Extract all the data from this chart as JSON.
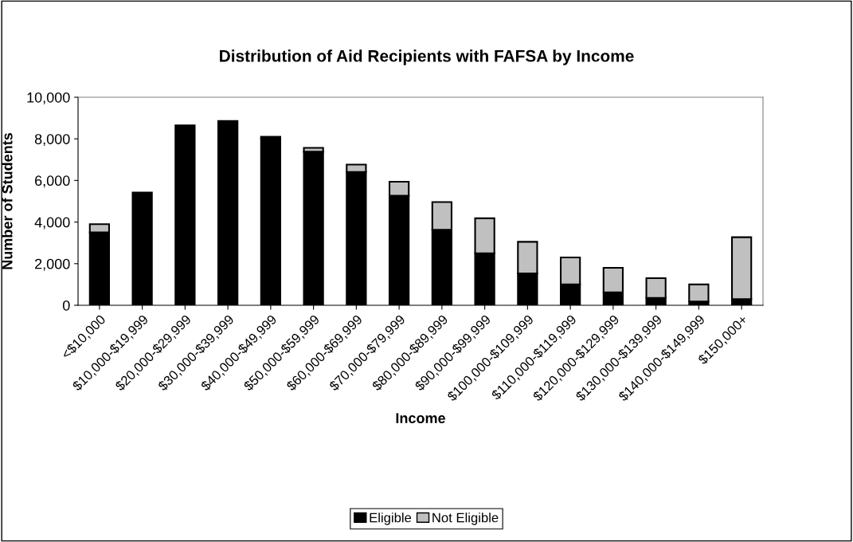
{
  "chart_data": {
    "type": "bar",
    "title": "Distribution of Aid Recipients with FAFSA by Income",
    "xlabel": "Income",
    "ylabel": "Number of Students",
    "categories": [
      "<$10,000",
      "$10,000-$19,999",
      "$20,000-$29,999",
      "$30,000-$39,999",
      "$40,000-$49,999",
      "$50,000-$59,999",
      "$60,000-$69,999",
      "$70,000-$79,999",
      "$80,000-$89,999",
      "$90,000-$99,999",
      "$100,000-$109,999",
      "$110,000-$119,999",
      "$120,000-$129,999",
      "$130,000-$139,999",
      "$140,000-$149,999",
      "$150,000+"
    ],
    "stacked": true,
    "series": [
      {
        "name": "Eligible",
        "color": "#000000",
        "values": [
          3500,
          5420,
          8650,
          8860,
          8030,
          7380,
          6410,
          5270,
          3630,
          2500,
          1530,
          1000,
          620,
          350,
          180,
          300
        ]
      },
      {
        "name": "Not Eligible",
        "color": "#c0c0c0",
        "values": [
          400,
          null,
          null,
          null,
          70,
          190,
          350,
          670,
          1330,
          1680,
          1520,
          1300,
          1180,
          950,
          820,
          2970
        ]
      }
    ],
    "ylim": [
      0,
      10000
    ],
    "yticks": [
      {
        "value": 0,
        "label": "0"
      },
      {
        "value": 2000,
        "label": "2,000"
      },
      {
        "value": 4000,
        "label": "4,000"
      },
      {
        "value": 6000,
        "label": "6,000"
      },
      {
        "value": 8000,
        "label": "8,000"
      },
      {
        "value": 10000,
        "label": "10,000"
      }
    ],
    "grid": false,
    "legend": "bottom"
  }
}
